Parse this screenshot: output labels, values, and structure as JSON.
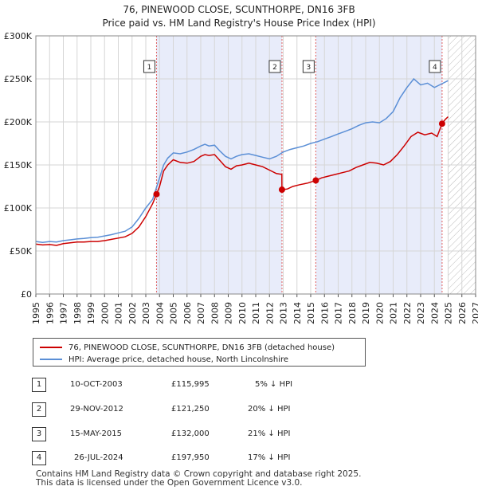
{
  "chart_data": {
    "type": "line",
    "title": "76, PINEWOOD CLOSE, SCUNTHORPE, DN16 3FB",
    "subtitle": "Price paid vs. HM Land Registry's House Price Index (HPI)",
    "xlabel": "",
    "ylabel": "",
    "xlim": [
      1995,
      2027
    ],
    "ylim": [
      0,
      300000
    ],
    "y_ticks": [
      {
        "value": 0,
        "label": "£0"
      },
      {
        "value": 50000,
        "label": "£50K"
      },
      {
        "value": 100000,
        "label": "£100K"
      },
      {
        "value": 150000,
        "label": "£150K"
      },
      {
        "value": 200000,
        "label": "£200K"
      },
      {
        "value": 250000,
        "label": "£250K"
      },
      {
        "value": 300000,
        "label": "£300K"
      }
    ],
    "x_ticks": [
      "1995",
      "1996",
      "1997",
      "1998",
      "1999",
      "2000",
      "2001",
      "2002",
      "2003",
      "2004",
      "2005",
      "2006",
      "2007",
      "2008",
      "2009",
      "2010",
      "2011",
      "2012",
      "2013",
      "2014",
      "2015",
      "2016",
      "2017",
      "2018",
      "2019",
      "2020",
      "2021",
      "2022",
      "2023",
      "2024",
      "2025",
      "2026",
      "2027"
    ],
    "grid": true,
    "forecast_start": 2025.0,
    "series": [
      {
        "name": "76, PINEWOOD CLOSE, SCUNTHORPE, DN16 3FB (detached house)",
        "color": "#cc0000",
        "x": [
          1995.0,
          1995.5,
          1996.0,
          1996.5,
          1997.0,
          1997.5,
          1998.0,
          1998.5,
          1999.0,
          1999.5,
          2000.0,
          2000.5,
          2001.0,
          2001.5,
          2002.0,
          2002.5,
          2003.0,
          2003.5,
          2003.78,
          2004.0,
          2004.3,
          2004.6,
          2005.0,
          2005.5,
          2006.0,
          2006.5,
          2007.0,
          2007.3,
          2007.6,
          2008.0,
          2008.4,
          2008.8,
          2009.2,
          2009.6,
          2010.0,
          2010.5,
          2011.0,
          2011.5,
          2012.0,
          2012.5,
          2012.9,
          2012.91,
          2013.3,
          2013.7,
          2014.2,
          2014.8,
          2015.37,
          2015.8,
          2016.3,
          2016.8,
          2017.3,
          2017.8,
          2018.3,
          2018.8,
          2019.3,
          2019.8,
          2020.3,
          2020.8,
          2021.3,
          2021.8,
          2022.3,
          2022.8,
          2023.3,
          2023.8,
          2024.2,
          2024.56,
          2024.8,
          2025.0
        ],
        "values": [
          58000,
          57000,
          57500,
          56500,
          58500,
          59500,
          60500,
          60500,
          61000,
          61000,
          62000,
          63500,
          65000,
          66500,
          70500,
          78000,
          90000,
          105000,
          115995,
          125000,
          143000,
          150000,
          156000,
          153000,
          152000,
          154000,
          160000,
          162000,
          161000,
          162000,
          155000,
          148000,
          145000,
          149000,
          150000,
          152000,
          150000,
          148000,
          144000,
          140000,
          139000,
          121250,
          122000,
          125000,
          127000,
          129000,
          132000,
          135000,
          137000,
          139000,
          141000,
          143000,
          147000,
          150000,
          153000,
          152000,
          150000,
          154000,
          162000,
          172000,
          183000,
          188000,
          185000,
          187000,
          183000,
          197950,
          203000,
          206000
        ]
      },
      {
        "name": "HPI: Average price, detached house, North Lincolnshire",
        "color": "#5b8fd6",
        "x": [
          1995.0,
          1995.5,
          1996.0,
          1996.5,
          1997.0,
          1997.5,
          1998.0,
          1998.5,
          1999.0,
          1999.5,
          2000.0,
          2000.5,
          2001.0,
          2001.5,
          2002.0,
          2002.5,
          2003.0,
          2003.5,
          2004.0,
          2004.3,
          2004.6,
          2005.0,
          2005.5,
          2006.0,
          2006.5,
          2007.0,
          2007.3,
          2007.6,
          2008.0,
          2008.4,
          2008.8,
          2009.2,
          2009.6,
          2010.0,
          2010.5,
          2011.0,
          2011.5,
          2012.0,
          2012.5,
          2013.0,
          2013.5,
          2014.0,
          2014.5,
          2015.0,
          2015.5,
          2016.0,
          2016.5,
          2017.0,
          2017.5,
          2018.0,
          2018.5,
          2019.0,
          2019.5,
          2020.0,
          2020.5,
          2021.0,
          2021.5,
          2022.0,
          2022.5,
          2023.0,
          2023.5,
          2024.0,
          2024.5,
          2025.0
        ],
        "values": [
          61000,
          60000,
          61000,
          60500,
          62000,
          63000,
          64000,
          64500,
          65500,
          66000,
          67500,
          69000,
          71000,
          73000,
          78000,
          88000,
          100000,
          110000,
          135000,
          150000,
          158000,
          164000,
          163000,
          165000,
          168000,
          172000,
          174000,
          172000,
          173000,
          166000,
          160000,
          157000,
          160000,
          162000,
          163000,
          161000,
          159000,
          157000,
          160000,
          165000,
          168000,
          170000,
          172000,
          175000,
          177000,
          180000,
          183000,
          186000,
          189000,
          192000,
          196000,
          199000,
          200000,
          199000,
          204000,
          212000,
          228000,
          240000,
          250000,
          243000,
          245000,
          240000,
          244000,
          248000
        ]
      }
    ],
    "sale_markers": [
      {
        "label": "1",
        "x": 2003.78,
        "price": 115995
      },
      {
        "label": "2",
        "x": 2012.91,
        "price": 121250
      },
      {
        "label": "3",
        "x": 2015.37,
        "price": 132000
      },
      {
        "label": "4",
        "x": 2024.56,
        "price": 197950
      }
    ]
  },
  "legend": {
    "property_label": "76, PINEWOOD CLOSE, SCUNTHORPE, DN16 3FB (detached house)",
    "hpi_label": "HPI: Average price, detached house, North Lincolnshire"
  },
  "transactions": [
    {
      "num": "1",
      "date": "10-OCT-2003",
      "price": "£115,995",
      "hpi": "5% ↓ HPI"
    },
    {
      "num": "2",
      "date": "29-NOV-2012",
      "price": "£121,250",
      "hpi": "20% ↓ HPI"
    },
    {
      "num": "3",
      "date": "15-MAY-2015",
      "price": "£132,000",
      "hpi": "21% ↓ HPI"
    },
    {
      "num": "4",
      "date": "26-JUL-2024",
      "price": "£197,950",
      "hpi": "17% ↓ HPI"
    }
  ],
  "footer": {
    "line1": "Contains HM Land Registry data © Crown copyright and database right 2025.",
    "line2": "This data is licensed under the Open Government Licence v3.0."
  }
}
